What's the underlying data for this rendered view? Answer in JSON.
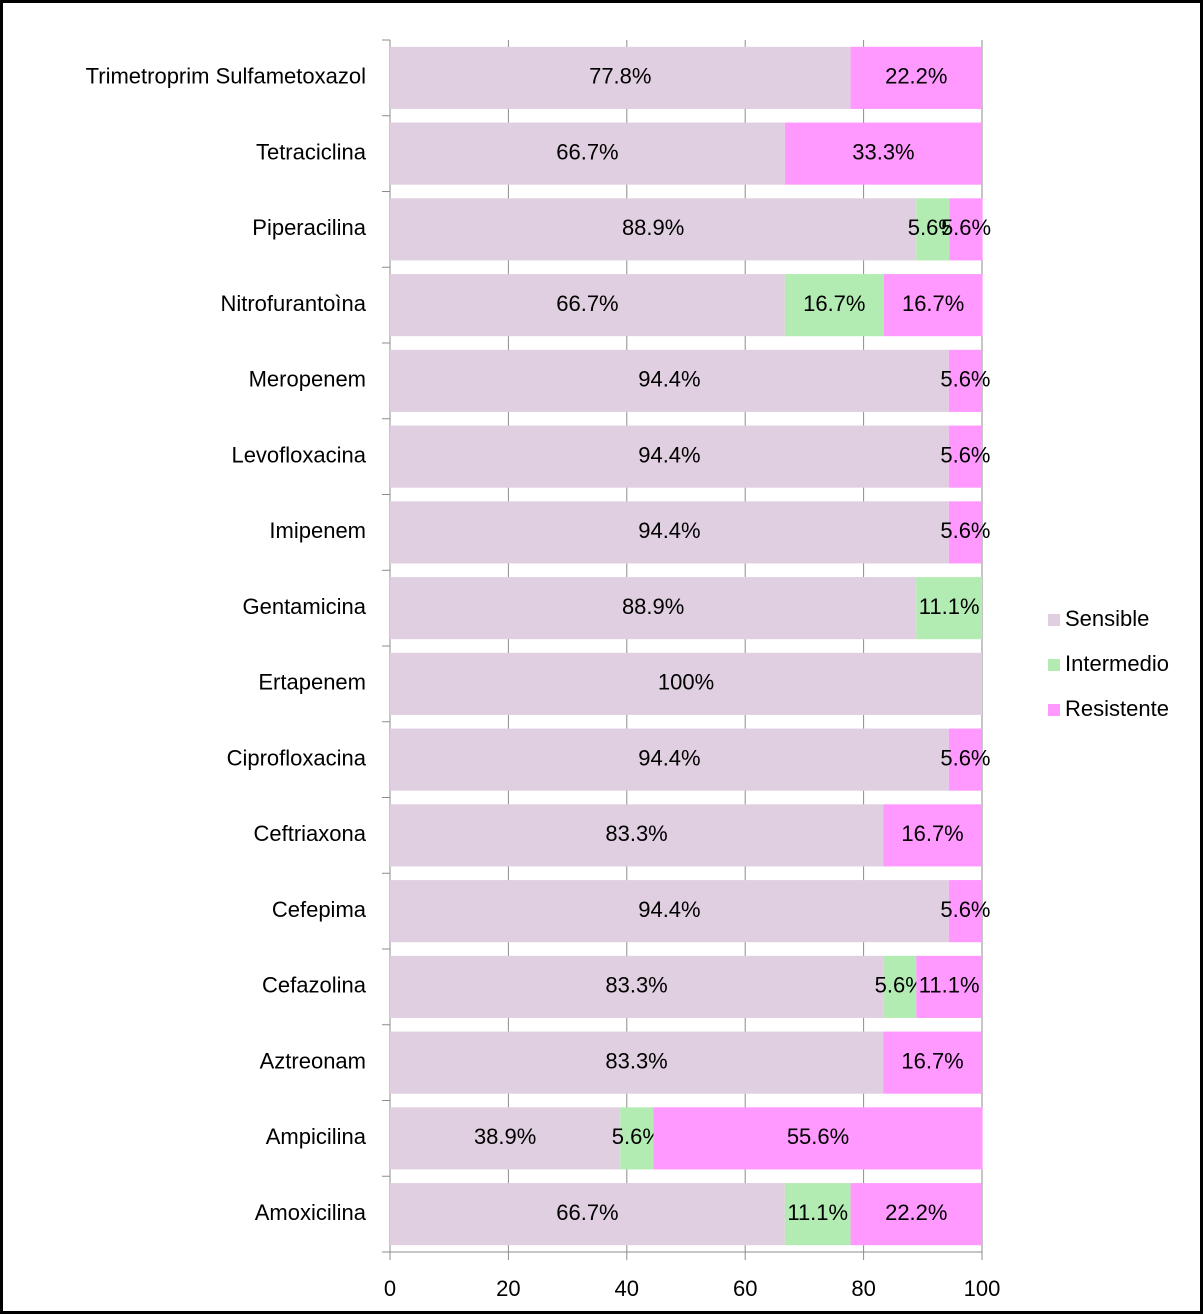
{
  "chart_data": {
    "type": "bar",
    "orientation": "horizontal",
    "stacked": true,
    "categories": [
      "Trimetroprim Sulfametoxazol",
      "Tetraciclina",
      "Piperacilina",
      "Nitrofurantoìna",
      "Meropenem",
      "Levofloxacina",
      "Imipenem",
      "Gentamicina",
      "Ertapenem",
      "Ciprofloxacina",
      "Ceftriaxona",
      "Cefepima",
      "Cefazolina",
      "Aztreonam",
      "Ampicilina",
      "Amoxicilina"
    ],
    "series": [
      {
        "name": "Sensible",
        "color": "#e0cfe0",
        "values": [
          77.8,
          66.7,
          88.9,
          66.7,
          94.4,
          94.4,
          94.4,
          88.9,
          100,
          94.4,
          83.3,
          94.4,
          83.3,
          83.3,
          38.9,
          66.7
        ],
        "value_labels": [
          "77.8%",
          "66.7%",
          "88.9%",
          "66.7%",
          "94.4%",
          "94.4%",
          "94.4%",
          "88.9%",
          "100%",
          "94.4%",
          "83.3%",
          "94.4%",
          "83.3%",
          "83.3%",
          "38.9%",
          "66.7%"
        ]
      },
      {
        "name": "Intermedio",
        "color": "#b3ecb3",
        "values": [
          null,
          null,
          5.6,
          16.7,
          null,
          null,
          null,
          11.1,
          null,
          null,
          null,
          null,
          5.6,
          null,
          5.6,
          11.1
        ],
        "value_labels": [
          null,
          null,
          "5.6%",
          "16.7%",
          null,
          null,
          null,
          "11.1%",
          null,
          null,
          null,
          null,
          "5.6%",
          null,
          "5.6%",
          "11.1%"
        ]
      },
      {
        "name": "Resistente",
        "color": "#ff99ff",
        "values": [
          22.2,
          33.3,
          5.6,
          16.7,
          5.6,
          5.6,
          5.6,
          null,
          null,
          5.6,
          16.7,
          5.6,
          11.1,
          16.7,
          55.6,
          22.2
        ],
        "value_labels": [
          "22.2%",
          "33.3%",
          "5.6%",
          "16.7%",
          "5.6%",
          "5.6%",
          "5.6%",
          null,
          null,
          "5.6%",
          "16.7%",
          "5.6%",
          "11.1%",
          "16.7%",
          "55.6%",
          "22.2%"
        ]
      }
    ],
    "xlim": [
      0,
      100
    ],
    "xticks": [
      0,
      20,
      40,
      60,
      80,
      100
    ],
    "grid": true,
    "legend": "right"
  }
}
